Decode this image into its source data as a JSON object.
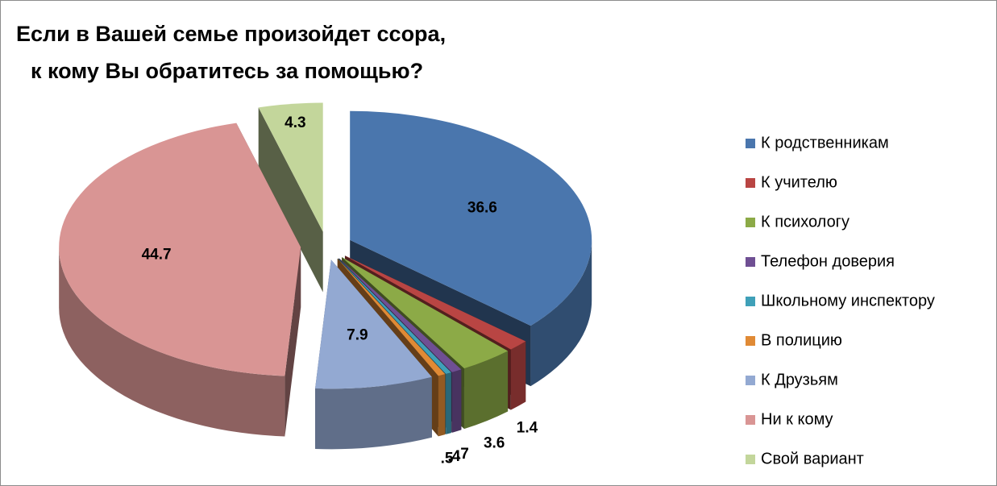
{
  "chart_data": {
    "type": "pie3d",
    "title": [
      "Если в Вашей семье произойдет ссора,",
      "к кому Вы обратитесь за помощью?"
    ],
    "categories": [
      "К родственникам",
      "К учителю",
      "К психологу",
      "Телефон доверия",
      "Школьному инспектору",
      "В полицию",
      "К Друзьям",
      "Ни к кому",
      "Свой вариант"
    ],
    "values": [
      36.6,
      1.4,
      3.6,
      0.7,
      0.4,
      0.5,
      7.9,
      44.7,
      4.3
    ],
    "value_labels": [
      "36.6",
      "1.4",
      "3.6",
      ".7",
      ".4",
      ".5",
      "7.9",
      "44.7",
      "4.3"
    ],
    "colors": [
      "#4a76ad",
      "#b94543",
      "#8caa47",
      "#6f4f93",
      "#3fa0b8",
      "#e08a35",
      "#93a9d2",
      "#d99594",
      "#c3d69b"
    ],
    "legend": "right"
  }
}
